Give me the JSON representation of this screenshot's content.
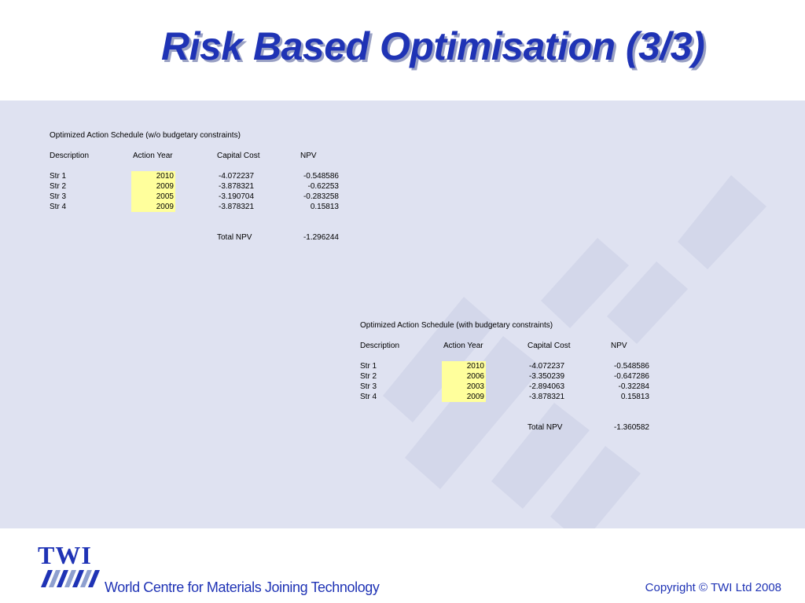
{
  "title": "Risk Based Optimisation  (3/3)",
  "colors": {
    "title": "#1f33b5",
    "band_background": "#dfe2f1",
    "highlight": "#ffff9c",
    "footer_text": "#1f33b5"
  },
  "schedule_without_budget": {
    "heading": "Optimized Action Schedule (w/o budgetary constraints)",
    "columns": [
      "Description",
      "Action Year",
      "Capital Cost",
      "NPV"
    ],
    "rows": [
      {
        "description": "Str 1",
        "action_year": "2010",
        "capital_cost": "-4.072237",
        "npv": "-0.548586"
      },
      {
        "description": "Str 2",
        "action_year": "2009",
        "capital_cost": "-3.878321",
        "npv": "-0.62253"
      },
      {
        "description": "Str 3",
        "action_year": "2005",
        "capital_cost": "-3.190704",
        "npv": "-0.283258"
      },
      {
        "description": "Str 4",
        "action_year": "2009",
        "capital_cost": "-3.878321",
        "npv": "0.15813"
      }
    ],
    "total_label": "Total NPV",
    "total_value": "-1.296244"
  },
  "schedule_with_budget": {
    "heading": "Optimized Action Schedule (with budgetary constraints)",
    "columns": [
      "Description",
      "Action Year",
      "Capital Cost",
      "NPV"
    ],
    "rows": [
      {
        "description": "Str 1",
        "action_year": "2010",
        "capital_cost": "-4.072237",
        "npv": "-0.548586"
      },
      {
        "description": "Str 2",
        "action_year": "2006",
        "capital_cost": "-3.350239",
        "npv": "-0.647286"
      },
      {
        "description": "Str 3",
        "action_year": "2003",
        "capital_cost": "-2.894063",
        "npv": "-0.32284"
      },
      {
        "description": "Str 4",
        "action_year": "2009",
        "capital_cost": "-3.878321",
        "npv": "0.15813"
      }
    ],
    "total_label": "Total NPV",
    "total_value": "-1.360582"
  },
  "footer": {
    "logo_text": "TWI",
    "tagline": "World Centre for Materials Joining Technology",
    "copyright": "Copyright © TWI Ltd 2008"
  }
}
